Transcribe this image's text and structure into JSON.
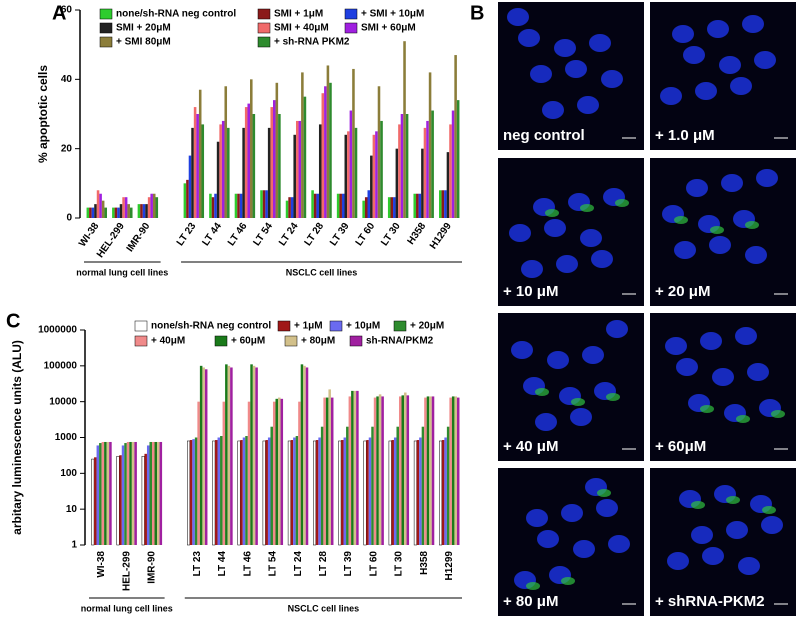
{
  "panel_labels": [
    "A",
    "B",
    "C"
  ],
  "chart_data": [
    {
      "type": "bar",
      "ylabel": "% apoptotic cells",
      "categories": [
        "WI-38",
        "HEL-299",
        "IMR-90",
        "LT 23",
        "LT 44",
        "LT 46",
        "LT 54",
        "LT 24",
        "LT 28",
        "LT 39",
        "LT 60",
        "LT 30",
        "H358",
        "H1299"
      ],
      "groups": [
        "normal lung cell lines",
        "NSCLC cell lines"
      ],
      "ylim": [
        0,
        60
      ],
      "yticks": [
        0,
        20,
        40,
        60
      ],
      "log_scale": false,
      "series": [
        {
          "name": "none/sh-RNA neg control",
          "color": "#2ecc2e",
          "values": [
            3,
            3,
            4,
            10,
            7,
            7,
            8,
            5,
            8,
            7,
            5,
            6,
            7,
            8
          ]
        },
        {
          "name": "SMI + 1μM",
          "color": "#8b1a1a",
          "values": [
            3,
            3,
            4,
            11,
            6,
            7,
            8,
            6,
            7,
            7,
            6,
            6,
            7,
            8
          ]
        },
        {
          "name": "+ SMI + 10μM",
          "color": "#1f3fe0",
          "values": [
            3,
            3,
            4,
            18,
            7,
            7,
            8,
            6,
            7,
            7,
            8,
            6,
            7,
            8
          ]
        },
        {
          "name": "SMI + 20μM",
          "color": "#222222",
          "values": [
            4,
            4,
            4,
            26,
            22,
            26,
            26,
            24,
            27,
            24,
            18,
            20,
            20,
            19
          ]
        },
        {
          "name": "SMI + 40μM",
          "color": "#f06a6a",
          "values": [
            8,
            6,
            6,
            32,
            27,
            32,
            32,
            28,
            36,
            25,
            24,
            27,
            26,
            27
          ]
        },
        {
          "name": "SMI + 60μM",
          "color": "#a020e0",
          "values": [
            7,
            6,
            7,
            30,
            28,
            33,
            34,
            28,
            38,
            31,
            25,
            30,
            28,
            31
          ]
        },
        {
          "name": "+ SMI 80μM",
          "color": "#8b7d3a",
          "values": [
            5,
            4,
            7,
            37,
            38,
            40,
            39,
            42,
            44,
            43,
            38,
            51,
            42,
            47
          ]
        },
        {
          "name": "+ sh-RNA PKM2",
          "color": "#2e8b2e",
          "values": [
            3,
            3,
            6,
            27,
            26,
            30,
            30,
            35,
            39,
            26,
            28,
            30,
            31,
            34
          ]
        }
      ]
    },
    {
      "type": "bar",
      "ylabel": "arbitary luminescence units (ALU)",
      "categories": [
        "WI-38",
        "HEL-299",
        "IMR-90",
        "LT 23",
        "LT 44",
        "LT 46",
        "LT 54",
        "LT 24",
        "LT 28",
        "LT 39",
        "LT 60",
        "LT 30",
        "H358",
        "H1299"
      ],
      "groups": [
        "normal lung cell lines",
        "NSCLC cell lines"
      ],
      "ylim": [
        1,
        1000000
      ],
      "yticks": [
        1,
        10,
        100,
        1000,
        10000,
        100000,
        1000000
      ],
      "log_scale": true,
      "series": [
        {
          "name": "none/sh-RNA neg control",
          "color": "#ffffff",
          "values": [
            250,
            300,
            300,
            800,
            800,
            800,
            800,
            800,
            800,
            800,
            800,
            800,
            800,
            800
          ]
        },
        {
          "name": "+ 1μM",
          "color": "#a01818",
          "values": [
            280,
            320,
            350,
            850,
            850,
            850,
            850,
            850,
            850,
            850,
            850,
            850,
            850,
            850
          ]
        },
        {
          "name": "+ 10μM",
          "color": "#6a6af0",
          "values": [
            600,
            600,
            600,
            900,
            1000,
            1000,
            1000,
            1000,
            1000,
            1000,
            1000,
            1000,
            1000,
            1000
          ]
        },
        {
          "name": "+ 20μM",
          "color": "#2e8b2e",
          "values": [
            700,
            700,
            750,
            1000,
            1100,
            1100,
            2000,
            1100,
            2000,
            2000,
            2000,
            2000,
            2000,
            2000
          ]
        },
        {
          "name": "+ 40μM",
          "color": "#f08a8a",
          "values": [
            750,
            750,
            750,
            10000,
            10000,
            10000,
            10000,
            10000,
            13000,
            14000,
            13000,
            14000,
            13000,
            13000
          ]
        },
        {
          "name": "+ 60μM",
          "color": "#1a7a1a",
          "values": [
            750,
            750,
            750,
            100000,
            110000,
            110000,
            12000,
            110000,
            13000,
            20000,
            14000,
            15000,
            14000,
            14000
          ]
        },
        {
          "name": "+ 80μM",
          "color": "#d2c08a",
          "values": [
            750,
            750,
            750,
            90000,
            100000,
            100000,
            13000,
            100000,
            22000,
            20000,
            16000,
            18000,
            14000,
            14000
          ]
        },
        {
          "name": "sh-RNA/PKM2",
          "color": "#a020a0",
          "values": [
            750,
            750,
            750,
            80000,
            90000,
            90000,
            12000,
            90000,
            13000,
            20000,
            14000,
            15000,
            14000,
            13000
          ]
        }
      ]
    }
  ],
  "micrographs": [
    "neg control",
    "+ 1.0 μM",
    "+ 10 μM",
    "+ 20 μM",
    "+ 40 μM",
    "+ 60μM",
    "+ 80 μM",
    "+ shRNA-PKM2"
  ]
}
